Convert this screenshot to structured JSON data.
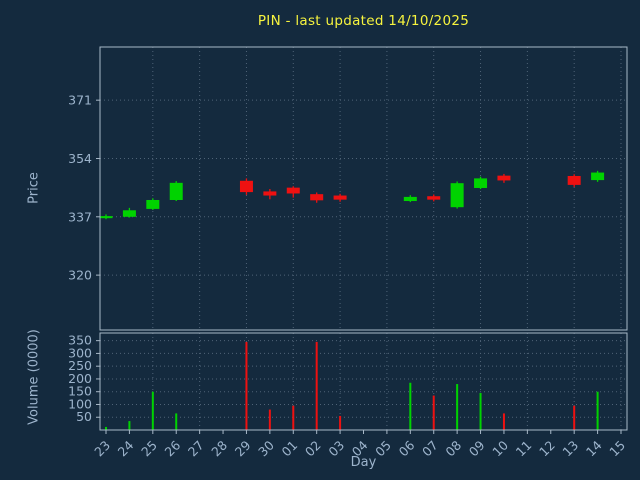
{
  "colors": {
    "background": "#142a3e",
    "title": "#f7f43e",
    "axis_text": "#9db4cc",
    "grid": "#4f6377",
    "frame": "#a9b9c8",
    "up": "#00d300",
    "down": "#ee1111"
  },
  "chart_data": {
    "type": "candlestick",
    "title": "PIN - last updated 14/10/2025",
    "xlabel": "Day",
    "ylabel_price": "Price",
    "ylabel_volume": "Volume (0000)",
    "grid": true,
    "legend": "none",
    "x_ticks": [
      "23",
      "24",
      "25",
      "26",
      "27",
      "28",
      "29",
      "30",
      "01",
      "02",
      "03",
      "04",
      "05",
      "06",
      "07",
      "08",
      "09",
      "10",
      "11",
      "12",
      "13",
      "14",
      "15"
    ],
    "price_axis": {
      "ticks": [
        320,
        337,
        354,
        371
      ],
      "ylim": [
        304,
        386.5
      ]
    },
    "volume_axis": {
      "ticks": [
        50,
        100,
        150,
        200,
        250,
        300,
        350
      ],
      "ylim": [
        0,
        380
      ]
    },
    "candles": [
      {
        "day": "23",
        "open": 336.6,
        "high": 337.7,
        "low": 336.3,
        "close": 337.2,
        "volume": 12
      },
      {
        "day": "24",
        "open": 337.0,
        "high": 339.6,
        "low": 336.8,
        "close": 338.9,
        "volume": 35
      },
      {
        "day": "25",
        "open": 339.3,
        "high": 342.4,
        "low": 339.0,
        "close": 341.9,
        "volume": 150
      },
      {
        "day": "26",
        "open": 341.9,
        "high": 347.4,
        "low": 341.6,
        "close": 346.9,
        "volume": 65
      },
      {
        "day": "29",
        "open": 347.5,
        "high": 348.2,
        "low": 343.4,
        "close": 344.2,
        "volume": 345
      },
      {
        "day": "30",
        "open": 344.4,
        "high": 345.1,
        "low": 342.1,
        "close": 343.2,
        "volume": 80
      },
      {
        "day": "01",
        "open": 345.5,
        "high": 345.9,
        "low": 342.6,
        "close": 343.8,
        "volume": 95
      },
      {
        "day": "02",
        "open": 343.6,
        "high": 344.1,
        "low": 341.1,
        "close": 341.8,
        "volume": 345
      },
      {
        "day": "03",
        "open": 343.2,
        "high": 343.7,
        "low": 341.4,
        "close": 342.0,
        "volume": 55
      },
      {
        "day": "06",
        "open": 341.6,
        "high": 343.3,
        "low": 341.3,
        "close": 342.8,
        "volume": 185
      },
      {
        "day": "07",
        "open": 343.0,
        "high": 343.5,
        "low": 341.5,
        "close": 342.0,
        "volume": 135
      },
      {
        "day": "08",
        "open": 339.8,
        "high": 347.3,
        "low": 339.4,
        "close": 346.8,
        "volume": 180
      },
      {
        "day": "09",
        "open": 345.4,
        "high": 348.7,
        "low": 345.1,
        "close": 348.2,
        "volume": 145
      },
      {
        "day": "10",
        "open": 349.0,
        "high": 349.5,
        "low": 346.9,
        "close": 347.6,
        "volume": 65
      },
      {
        "day": "13",
        "open": 348.9,
        "high": 349.4,
        "low": 345.7,
        "close": 346.3,
        "volume": 95
      },
      {
        "day": "14",
        "open": 347.7,
        "high": 350.4,
        "low": 347.2,
        "close": 349.9,
        "volume": 150
      }
    ]
  }
}
